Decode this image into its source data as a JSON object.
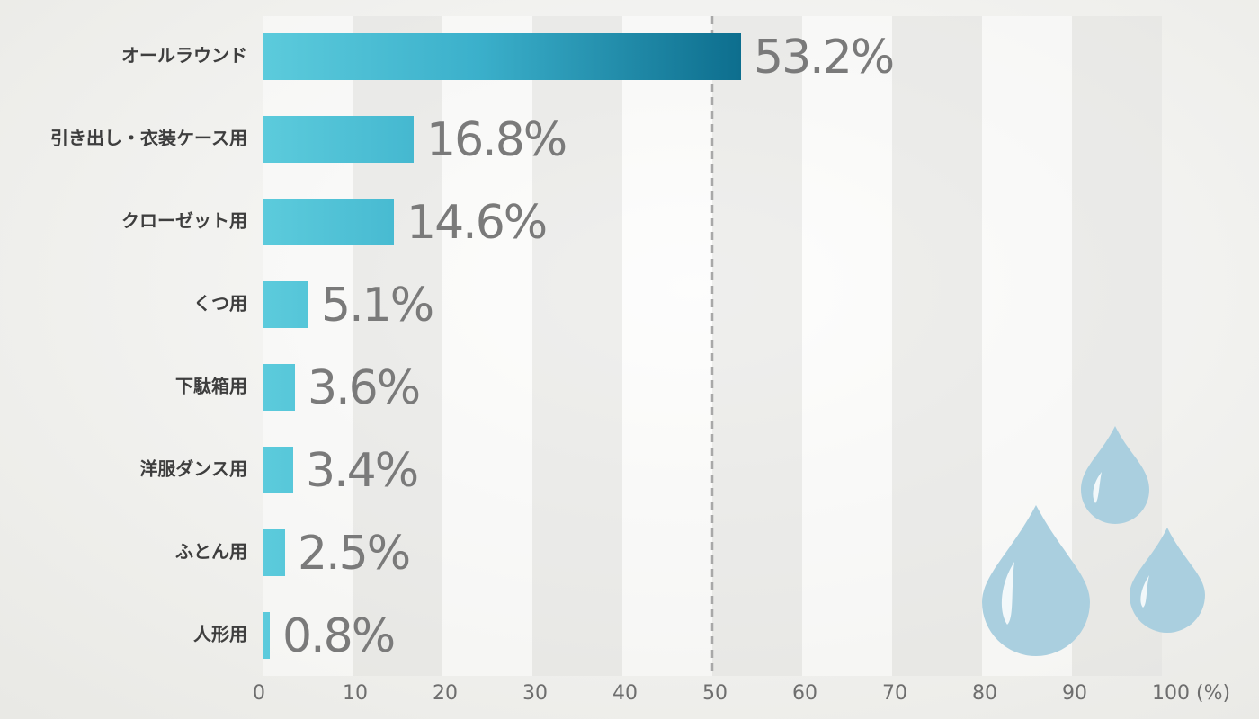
{
  "chart_data": {
    "type": "bar",
    "orientation": "horizontal",
    "categories": [
      "オールラウンド",
      "引き出し・衣装ケース用",
      "クローゼット用",
      "くつ用",
      "下駄箱用",
      "洋服ダンス用",
      "ふとん用",
      "人形用"
    ],
    "values": [
      53.2,
      16.8,
      14.6,
      5.1,
      3.6,
      3.4,
      2.5,
      0.8
    ],
    "value_labels": [
      "53.2%",
      "16.8%",
      "14.6%",
      "5.1%",
      "3.6%",
      "3.4%",
      "2.5%",
      "0.8%"
    ],
    "color": "#5ccbdc",
    "gradient_end_color": "#0d6e8e",
    "xlim": [
      0,
      100
    ],
    "xticks": [
      0,
      10,
      20,
      30,
      40,
      50,
      60,
      70,
      80,
      90,
      {
        "value": 100,
        "label": "100 (%)"
      }
    ],
    "reference_line": 50,
    "grid_bands": true
  }
}
